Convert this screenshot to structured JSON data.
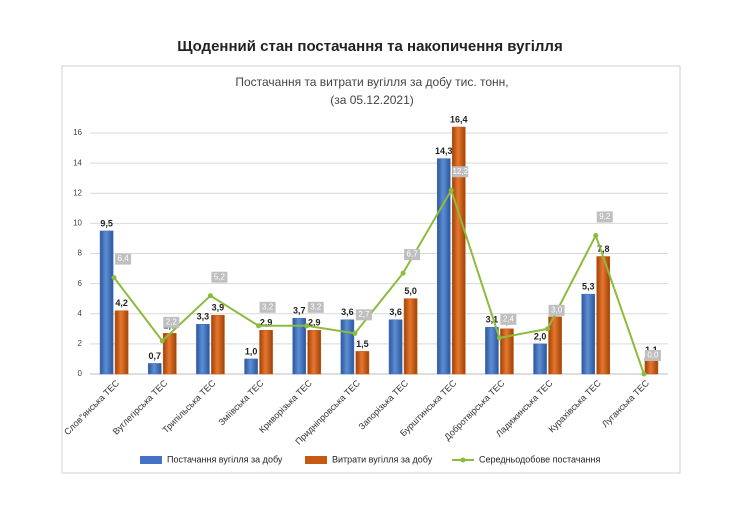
{
  "page_title": "Щоденний стан постачання та накопичення вугілля",
  "chart_data": {
    "type": "bar-line",
    "title": "Постачання та витрати вугілля  за добу тис. тонн,",
    "subtitle": "(за 05.12.2021)",
    "categories": [
      "Слов\"янська ТЕС",
      "Вуглегірська ТЕС",
      "Трипільська ТЕС",
      "Зміївська ТЕС",
      "Криворізька ТЕС",
      "Придніпровська ТЕС",
      "Запорізька ТЕС",
      "Бурштинська ТЕС",
      "Добротвірська ТЕС",
      "Ладижинська ТЕС",
      "Курахівська ТЕС",
      "Луганська ТЕС"
    ],
    "series": [
      {
        "name": "Постачання вугілля за добу",
        "type": "bar",
        "color": "#4472c4",
        "values": [
          9.5,
          0.7,
          3.3,
          1.0,
          3.7,
          3.6,
          3.6,
          14.3,
          3.1,
          2.0,
          5.3,
          null
        ],
        "value_labels": [
          "9,5",
          "0,7",
          "3,3",
          "1,0",
          "3,7",
          "3,6",
          "3,6",
          "14,3",
          "3,1",
          "2,0",
          "5,3",
          null
        ]
      },
      {
        "name": "Витрати вугілля за добу",
        "type": "bar",
        "color": "#c55a11",
        "values": [
          4.2,
          2.7,
          3.9,
          2.9,
          2.9,
          1.5,
          5.0,
          16.4,
          3.0,
          3.8,
          7.8,
          1.1
        ],
        "value_labels": [
          "4,2",
          "2,7",
          "3,9",
          "2,9",
          "2,9",
          "1,5",
          "5,0",
          "16,4",
          "3,0",
          "3,8",
          "7,8",
          "1,1"
        ]
      },
      {
        "name": "Середньодобове постачання",
        "type": "line",
        "color": "#8dbb3c",
        "values": [
          6.4,
          2.2,
          5.2,
          3.2,
          3.2,
          2.7,
          6.7,
          12.2,
          2.4,
          3.0,
          9.2,
          0.0
        ],
        "value_labels": [
          "6,4",
          "2,2",
          "5,2",
          "3,2",
          "3,2",
          "2,7",
          "6,7",
          "12,2",
          "2,4",
          "3,0",
          "9,2",
          "0,0"
        ]
      }
    ],
    "ylim": [
      0,
      17
    ],
    "yticks": [
      0,
      2,
      4,
      6,
      8,
      10,
      12,
      14,
      16
    ],
    "grid": true
  }
}
